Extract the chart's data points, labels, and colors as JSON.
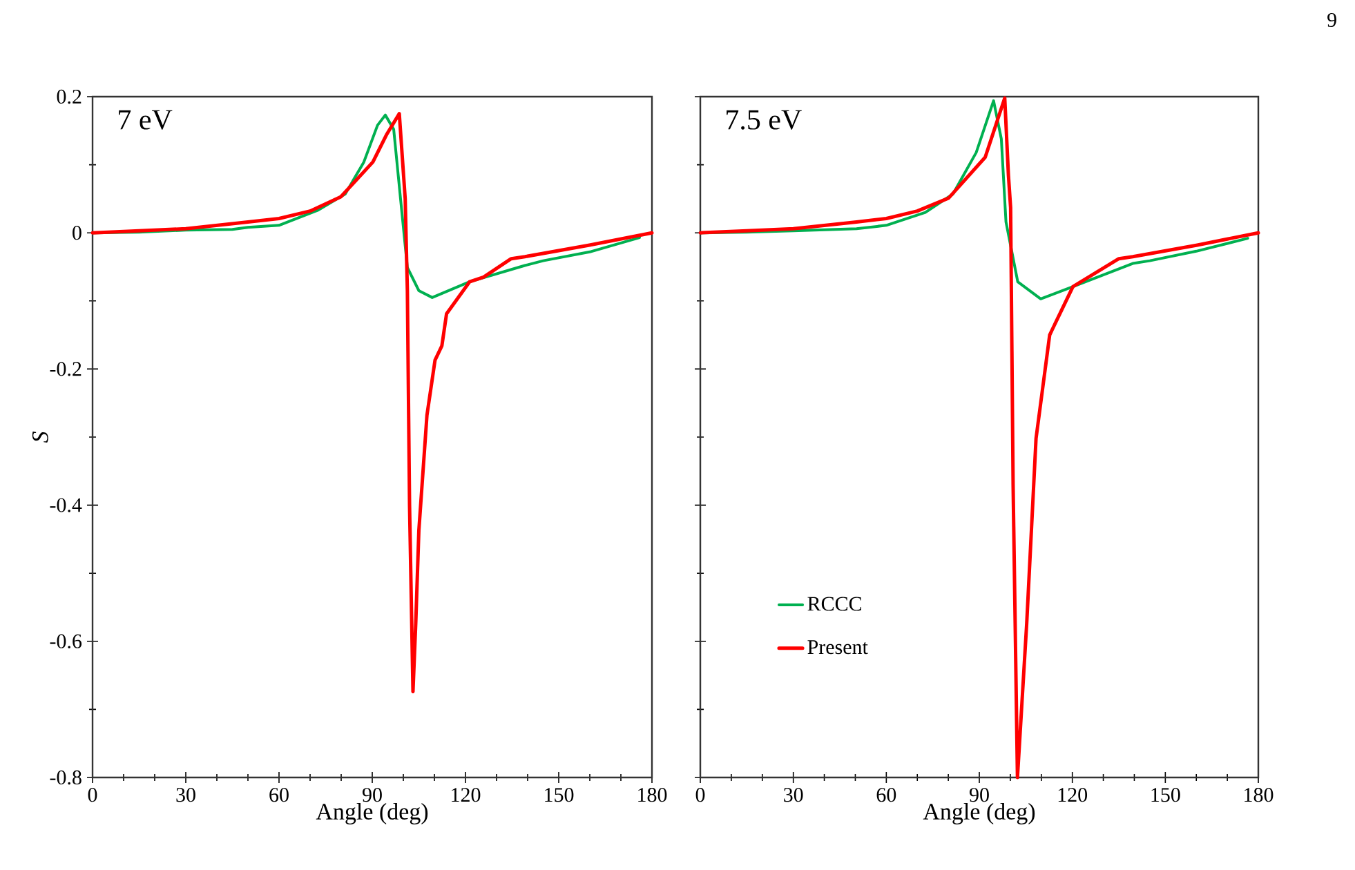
{
  "chart_data": [
    {
      "type": "line",
      "title": "7 eV",
      "xlabel": "Angle (deg)",
      "ylabel": "*S*",
      "xlim": [
        0,
        180
      ],
      "ylim": [
        -0.8,
        0.2
      ],
      "xticks": [
        0,
        30,
        60,
        90,
        120,
        150,
        180
      ],
      "yticks": [
        -0.8,
        -0.6,
        -0.4,
        -0.2,
        0,
        0.2
      ],
      "grid": false,
      "legend": false,
      "marker": "none",
      "line_style": "solid",
      "series": [
        {
          "color": "#00b050",
          "x": [
            0,
            15,
            30,
            45,
            50,
            60,
            72.4,
            81.3,
            87.3,
            91.7,
            94.2,
            96.9,
            99.1,
            101.3,
            105,
            109.3,
            121.3,
            139.1,
            145,
            160,
            176
          ],
          "values": [
            0,
            0.001,
            0.004,
            0.005,
            0.008,
            0.011,
            0.033,
            0.057,
            0.104,
            0.158,
            0.173,
            0.152,
            0.05,
            -0.051,
            -0.085,
            -0.095,
            -0.072,
            -0.048,
            -0.041,
            -0.028,
            -0.007
          ]
        },
        {
          "color": "#ff0000",
          "x": [
            0,
            15,
            30,
            50,
            60,
            70,
            79.9,
            90.2,
            94.7,
            98.7,
            100.6,
            101.3,
            102,
            103.1,
            104,
            105,
            107.6,
            110.2,
            112.4,
            113.9,
            121.3,
            125.8,
            134.7,
            139.1,
            159.9,
            180
          ],
          "values": [
            0,
            0.003,
            0.006,
            0.016,
            0.021,
            0.032,
            0.053,
            0.104,
            0.145,
            0.175,
            0.05,
            -0.085,
            -0.4,
            -0.674,
            -0.573,
            -0.437,
            -0.268,
            -0.187,
            -0.166,
            -0.119,
            -0.072,
            -0.065,
            -0.038,
            -0.035,
            -0.018,
            0
          ]
        }
      ]
    },
    {
      "type": "line",
      "title": "7.5 eV",
      "xlabel": "Angle (deg)",
      "xlim": [
        0,
        180
      ],
      "ylim": [
        -0.8,
        0.2
      ],
      "xticks": [
        0,
        30,
        60,
        90,
        120,
        150,
        180
      ],
      "yticks": [
        -0.8,
        -0.6,
        -0.4,
        -0.2,
        0,
        0.2
      ],
      "tick_labels": "x",
      "grid": false,
      "legend": "bottom left",
      "marker": "none",
      "line_style": "solid",
      "annotations": [
        "9"
      ],
      "series": [
        {
          "name": "RCCC",
          "color": "#00b050",
          "x": [
            0,
            15,
            30,
            50.4,
            60,
            72.6,
            81.5,
            89,
            94.6,
            97.1,
            98.6,
            102.4,
            109.8,
            120.2,
            139.5,
            145,
            160,
            176.6
          ],
          "values": [
            0,
            0.001,
            0.003,
            0.006,
            0.011,
            0.03,
            0.057,
            0.118,
            0.194,
            0.138,
            0.016,
            -0.072,
            -0.097,
            -0.079,
            -0.045,
            -0.041,
            -0.027,
            -0.008
          ]
        },
        {
          "name": "Present",
          "color": "#ff0000",
          "x": [
            0,
            15,
            30,
            50.4,
            60,
            70,
            80.1,
            91.9,
            98.2,
            99.4,
            100.1,
            100.9,
            102.3,
            105.3,
            108.3,
            112.7,
            120.2,
            135,
            139.5,
            160.3,
            180
          ],
          "values": [
            0,
            0.003,
            0.006,
            0.016,
            0.021,
            0.032,
            0.051,
            0.111,
            0.198,
            0.084,
            0.037,
            -0.37,
            -0.8,
            -0.573,
            -0.302,
            -0.15,
            -0.079,
            -0.038,
            -0.035,
            -0.018,
            0
          ]
        }
      ]
    }
  ]
}
